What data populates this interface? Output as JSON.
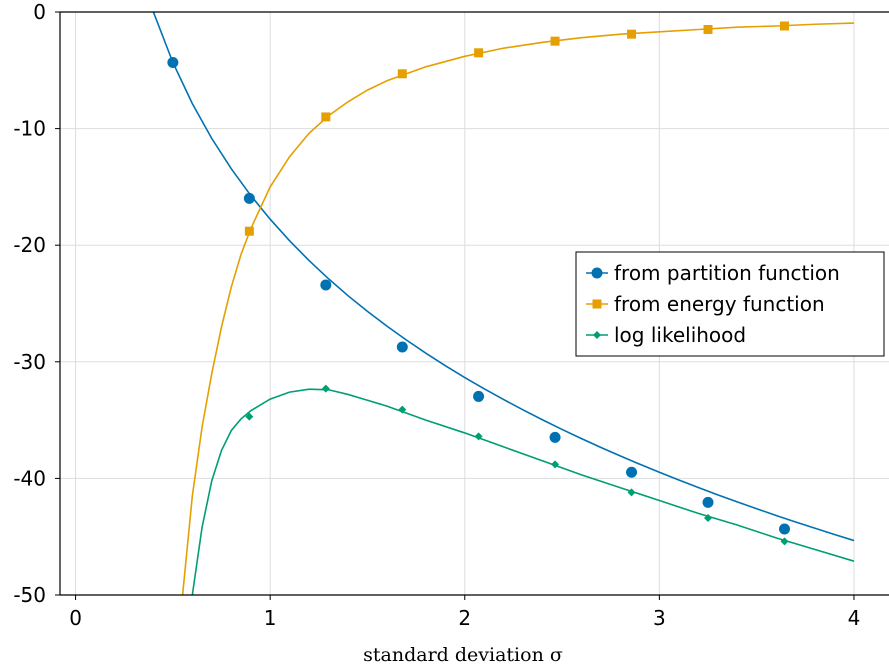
{
  "chart_data": {
    "type": "line",
    "title": "",
    "xlabel": "standard deviation σ",
    "ylabel": "",
    "xlim": [
      -0.08,
      4.18
    ],
    "ylim": [
      -50,
      0
    ],
    "xticks": [
      0,
      1,
      2,
      3,
      4
    ],
    "yticks": [
      0,
      -10,
      -20,
      -30,
      -40,
      -50
    ],
    "grid": true,
    "legend_position": "right-middle",
    "series": [
      {
        "name": "from partition function",
        "color": "#0072B2",
        "marker": "circle",
        "x": [
          0.4,
          0.5,
          0.6,
          0.7,
          0.8,
          0.9,
          1.0,
          1.1,
          1.2,
          1.3,
          1.4,
          1.5,
          1.6,
          1.7,
          1.8,
          1.9,
          2.0,
          2.1,
          2.2,
          2.3,
          2.4,
          2.5,
          2.6,
          2.7,
          2.8,
          2.9,
          3.0,
          3.1,
          3.2,
          3.3,
          3.4,
          3.5,
          3.6,
          3.7,
          3.8,
          3.9,
          4.0
        ],
        "y": [
          0.0,
          -4.33,
          -7.86,
          -10.85,
          -13.44,
          -15.73,
          -17.77,
          -19.62,
          -21.32,
          -22.88,
          -24.33,
          -25.68,
          -26.94,
          -28.13,
          -29.26,
          -30.33,
          -31.35,
          -32.32,
          -33.24,
          -34.13,
          -34.98,
          -35.8,
          -36.59,
          -37.35,
          -38.08,
          -38.79,
          -39.47,
          -40.14,
          -40.78,
          -41.41,
          -42.01,
          -42.6,
          -43.18,
          -43.74,
          -44.28,
          -44.81,
          -45.33
        ],
        "marker_x": [
          0.5,
          0.893,
          1.286,
          1.679,
          2.071,
          2.464,
          2.857,
          3.25,
          3.643
        ],
        "marker_y": [
          -4.33,
          -15.98,
          -23.41,
          -28.73,
          -32.97,
          -36.48,
          -39.47,
          -42.06,
          -44.34
        ]
      },
      {
        "name": "from energy function",
        "color": "#E69F00",
        "marker": "square",
        "x": [
          0.55,
          0.6,
          0.65,
          0.7,
          0.75,
          0.8,
          0.85,
          0.9,
          1.0,
          1.1,
          1.2,
          1.3,
          1.4,
          1.5,
          1.6,
          1.8,
          2.0,
          2.2,
          2.4,
          2.6,
          2.8,
          3.0,
          3.2,
          3.4,
          3.6,
          3.8,
          4.0
        ],
        "y": [
          -50.0,
          -41.5,
          -35.6,
          -31.0,
          -27.0,
          -23.6,
          -20.8,
          -18.6,
          -15.0,
          -12.4,
          -10.4,
          -8.9,
          -7.7,
          -6.7,
          -5.9,
          -4.7,
          -3.8,
          -3.1,
          -2.6,
          -2.2,
          -1.9,
          -1.7,
          -1.5,
          -1.3,
          -1.2,
          -1.05,
          -0.95
        ],
        "marker_x": [
          0.893,
          1.286,
          1.679,
          2.071,
          2.464,
          2.857,
          3.25,
          3.643
        ],
        "marker_y": [
          -18.8,
          -9.0,
          -5.3,
          -3.5,
          -2.5,
          -1.9,
          -1.5,
          -1.2
        ]
      },
      {
        "name": "log likelihood",
        "color": "#009E73",
        "marker": "diamond",
        "x": [
          0.6,
          0.65,
          0.7,
          0.75,
          0.8,
          0.85,
          0.9,
          1.0,
          1.1,
          1.2,
          1.3,
          1.4,
          1.5,
          1.6,
          1.8,
          2.0,
          2.2,
          2.4,
          2.6,
          2.8,
          3.0,
          3.2,
          3.4,
          3.6,
          3.8,
          4.0
        ],
        "y": [
          -50.0,
          -44.2,
          -40.2,
          -37.6,
          -35.9,
          -34.9,
          -34.2,
          -33.2,
          -32.6,
          -32.35,
          -32.4,
          -32.8,
          -33.3,
          -33.8,
          -35.0,
          -36.1,
          -37.3,
          -38.5,
          -39.7,
          -40.8,
          -41.9,
          -43.0,
          -44.0,
          -45.1,
          -46.1,
          -47.1
        ],
        "marker_x": [
          0.893,
          1.286,
          1.679,
          2.071,
          2.464,
          2.857,
          3.25,
          3.643
        ],
        "marker_y": [
          -34.7,
          -32.3,
          -34.1,
          -36.4,
          -38.8,
          -41.2,
          -43.4,
          -45.4
        ]
      }
    ]
  }
}
